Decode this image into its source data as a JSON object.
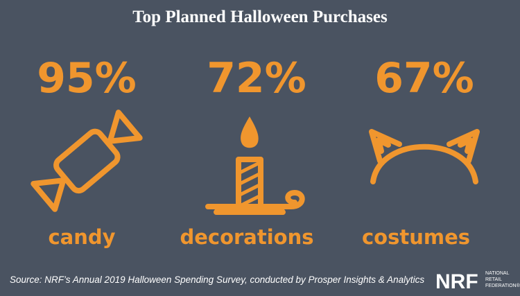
{
  "title": "Top Planned Halloween Purchases",
  "items": [
    {
      "percent": "95%",
      "label": "candy"
    },
    {
      "percent": "72%",
      "label": "decorations"
    },
    {
      "percent": "67%",
      "label": "costumes"
    }
  ],
  "source": "Source: NRF’s Annual 2019 Halloween Spending Survey, conducted by Prosper Insights & Analytics",
  "logo": {
    "mark": "NRF",
    "lines": [
      "NATIONAL",
      "RETAIL",
      "FEDERATION®"
    ]
  }
}
